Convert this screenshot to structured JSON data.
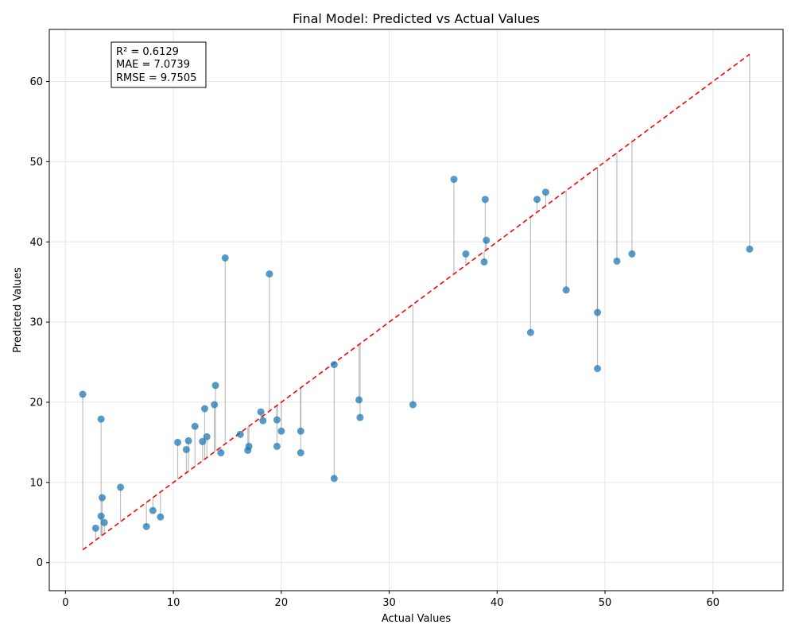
{
  "chart_data": {
    "type": "scatter",
    "title": "Final Model: Predicted vs Actual Values",
    "xlabel": "Actual Values",
    "ylabel": "Predicted Values",
    "xlim": [
      -1.5,
      66.5
    ],
    "ylim": [
      -3.5,
      66.5
    ],
    "xticks": [
      0,
      10,
      20,
      30,
      40,
      50,
      60
    ],
    "yticks": [
      0,
      10,
      20,
      30,
      40,
      50,
      60
    ],
    "grid": true,
    "point_color": "#1f77b4",
    "residual_color": "#808080",
    "reference_line": {
      "style": "dashed",
      "color": "#ff0000",
      "from": [
        1.6,
        1.6
      ],
      "to": [
        63.4,
        63.4
      ]
    },
    "stats": [
      "R² = 0.6129",
      "MAE = 7.0739",
      "RMSE = 9.7505"
    ],
    "points": [
      {
        "x": 1.6,
        "y": 21.0
      },
      {
        "x": 2.8,
        "y": 4.3
      },
      {
        "x": 3.3,
        "y": 5.8
      },
      {
        "x": 3.3,
        "y": 17.9
      },
      {
        "x": 3.4,
        "y": 8.1
      },
      {
        "x": 3.6,
        "y": 5.0
      },
      {
        "x": 5.1,
        "y": 9.4
      },
      {
        "x": 7.5,
        "y": 4.5
      },
      {
        "x": 8.1,
        "y": 6.5
      },
      {
        "x": 8.8,
        "y": 5.7
      },
      {
        "x": 10.4,
        "y": 15.0
      },
      {
        "x": 11.2,
        "y": 14.1
      },
      {
        "x": 11.4,
        "y": 15.2
      },
      {
        "x": 12.0,
        "y": 17.0
      },
      {
        "x": 12.7,
        "y": 15.1
      },
      {
        "x": 12.9,
        "y": 19.2
      },
      {
        "x": 13.1,
        "y": 15.7
      },
      {
        "x": 13.8,
        "y": 19.7
      },
      {
        "x": 13.9,
        "y": 22.1
      },
      {
        "x": 14.4,
        "y": 13.7
      },
      {
        "x": 14.8,
        "y": 38.0
      },
      {
        "x": 16.2,
        "y": 16.0
      },
      {
        "x": 16.9,
        "y": 14.0
      },
      {
        "x": 17.0,
        "y": 14.5
      },
      {
        "x": 18.1,
        "y": 18.8
      },
      {
        "x": 18.3,
        "y": 17.7
      },
      {
        "x": 18.9,
        "y": 36.0
      },
      {
        "x": 19.6,
        "y": 17.8
      },
      {
        "x": 19.6,
        "y": 14.5
      },
      {
        "x": 20.0,
        "y": 16.4
      },
      {
        "x": 21.8,
        "y": 16.4
      },
      {
        "x": 21.8,
        "y": 13.7
      },
      {
        "x": 24.9,
        "y": 24.7
      },
      {
        "x": 24.9,
        "y": 10.5
      },
      {
        "x": 27.2,
        "y": 20.3
      },
      {
        "x": 27.3,
        "y": 18.1
      },
      {
        "x": 32.2,
        "y": 19.7
      },
      {
        "x": 36.0,
        "y": 47.8
      },
      {
        "x": 37.1,
        "y": 38.5
      },
      {
        "x": 38.8,
        "y": 37.5
      },
      {
        "x": 38.9,
        "y": 45.3
      },
      {
        "x": 39.0,
        "y": 40.2
      },
      {
        "x": 43.1,
        "y": 28.7
      },
      {
        "x": 43.7,
        "y": 45.3
      },
      {
        "x": 44.5,
        "y": 46.2
      },
      {
        "x": 46.4,
        "y": 34.0
      },
      {
        "x": 49.3,
        "y": 31.2
      },
      {
        "x": 49.3,
        "y": 24.2
      },
      {
        "x": 51.1,
        "y": 37.6
      },
      {
        "x": 52.5,
        "y": 38.5
      },
      {
        "x": 63.4,
        "y": 39.1
      }
    ]
  }
}
